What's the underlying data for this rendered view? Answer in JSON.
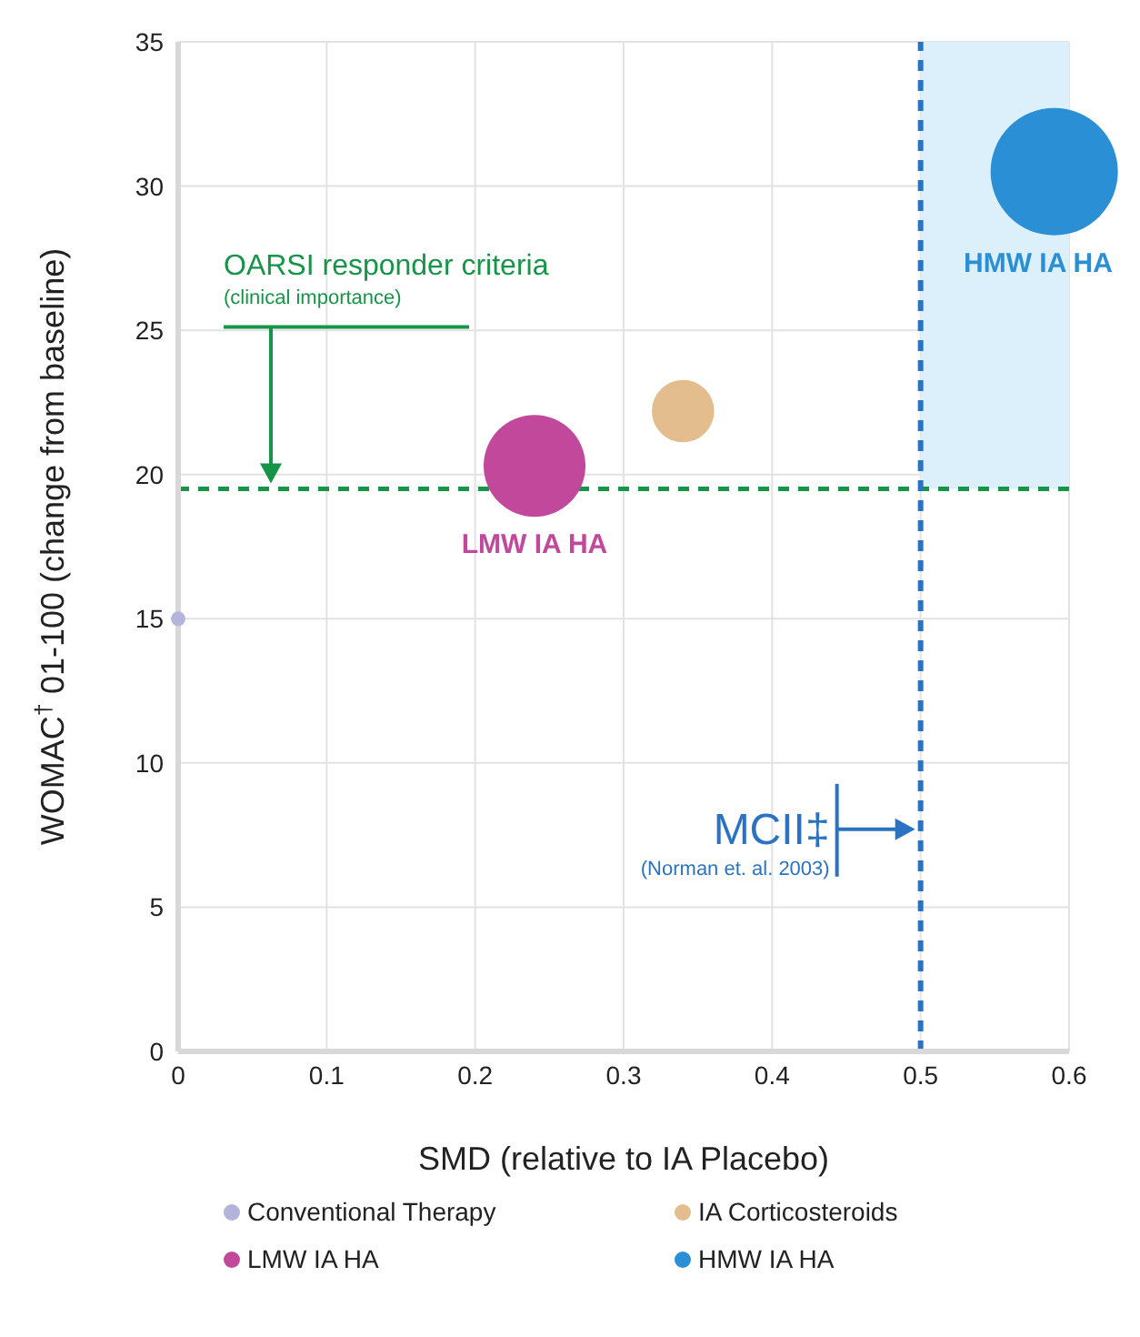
{
  "chart_data": {
    "type": "bubble",
    "xlabel": "SMD (relative to IA Placebo)",
    "ylabel": "WOMAC$^{†}$ 01-100 (change from baseline)",
    "xlim": [
      0,
      0.6
    ],
    "xticks": [
      0,
      0.1,
      0.2,
      0.3,
      0.4,
      0.5,
      0.6
    ],
    "ylim": [
      0,
      35
    ],
    "yticks": [
      0,
      5,
      10,
      15,
      20,
      25,
      30,
      35
    ],
    "grid": true,
    "legend": "bottom",
    "series": [
      {
        "name": "Conventional Therapy",
        "color": "#b3b3dc",
        "x": [
          0
        ],
        "values": [
          15
        ],
        "sizes": [
          0.013
        ]
      },
      {
        "name": "IA Corticosteroids",
        "color": "#e3bd8e",
        "x": [
          0.34
        ],
        "values": [
          22.2
        ],
        "sizes": [
          0.24
        ]
      },
      {
        "name": "LMW IA HA",
        "color": "#c1489b",
        "x": [
          0.24
        ],
        "values": [
          20.3
        ],
        "sizes": [
          0.64
        ]
      },
      {
        "name": "HMW IA HA",
        "color": "#2b8fd6",
        "x": [
          0.59
        ],
        "values": [
          30.5
        ],
        "sizes": [
          1
        ]
      }
    ],
    "ref_lines": [
      {
        "axis": "y",
        "value": 19.5,
        "label": "OARSI responder criteria",
        "color": "#169447",
        "line_style": "dashed"
      },
      {
        "axis": "x",
        "value": 0.5,
        "label": "MCII‡",
        "color": "#2a73c2",
        "line_style": "dashed"
      }
    ],
    "bands": [
      {
        "axis": "x",
        "from": 0.5,
        "to": 0.6,
        "color": "#dcf0fb"
      }
    ],
    "annotations": [
      "(clinical importance)",
      "(Norman et. al. 2003)",
      {
        "text": "LMW IA HA",
        "x": 0.24,
        "y": 20.3
      },
      {
        "text": "HMW IA HA",
        "x": 0.59,
        "y": 30.5
      }
    ]
  }
}
